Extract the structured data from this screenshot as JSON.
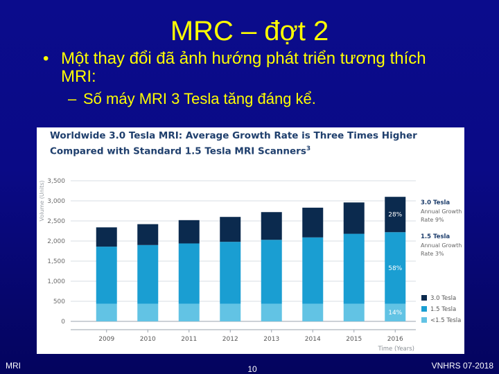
{
  "slide": {
    "title": "MRC – đợt 2",
    "bullet": "Một thay đổi đã ảnh hướng phát triển tương thích MRI:",
    "sub_bullet": "Số máy MRI 3 Tesla tăng đáng kể.",
    "footer_left": "MRI",
    "footer_center": "10",
    "footer_right": "VNHRS 07-2018"
  },
  "colors": {
    "background": "#0a0a86",
    "text": "#ffff00",
    "tesla_3_0": "#0b2a4e",
    "tesla_1_5": "#1a9ed2",
    "tesla_lt_1_5": "#62c3e4"
  },
  "chart_data": {
    "type": "bar",
    "stacked": true,
    "title": "Worldwide 3.0 Tesla MRI: Average Growth Rate is Three Times Higher Compared with Standard 1.5 Tesla MRI Scanners",
    "title_superscript": "3",
    "ylabel": "Volume (Units)",
    "xlabel": "Time (Years)",
    "ylim": [
      0,
      3500
    ],
    "yticks": [
      "0",
      "500",
      "1,000",
      "1,500",
      "2,000",
      "2,500",
      "3,000",
      "3,500"
    ],
    "ytick_values": [
      0,
      500,
      1000,
      1500,
      2000,
      2500,
      3000,
      3500
    ],
    "categories": [
      "2009",
      "2010",
      "2011",
      "2012",
      "2013",
      "2014",
      "2015",
      "2016"
    ],
    "series": [
      {
        "name": "<1.5 Tesla",
        "color": "#62c3e4",
        "values": [
          440,
          440,
          440,
          440,
          440,
          440,
          440,
          440
        ]
      },
      {
        "name": "1.5 Tesla",
        "color": "#1a9ed2",
        "values": [
          1420,
          1460,
          1500,
          1540,
          1590,
          1650,
          1740,
          1780
        ]
      },
      {
        "name": "3.0 Tesla",
        "color": "#0b2a4e",
        "values": [
          480,
          520,
          580,
          620,
          690,
          740,
          780,
          880
        ]
      }
    ],
    "data_labels": [
      {
        "series": "3.0 Tesla",
        "category": "2016",
        "text": "28%"
      },
      {
        "series": "1.5 Tesla",
        "category": "2016",
        "text": "58%"
      },
      {
        "series": "<1.5 Tesla",
        "category": "2016",
        "text": "14%"
      }
    ],
    "annotations": [
      {
        "series": "3.0 Tesla",
        "title": "3.0 Tesla",
        "lines": [
          "Annual Growth",
          "Rate 9%"
        ]
      },
      {
        "series": "1.5 Tesla",
        "title": "1.5 Tesla",
        "lines": [
          "Annual Growth",
          "Rate 3%"
        ]
      }
    ],
    "legend": {
      "position": "right",
      "items": [
        {
          "label": "3.0 Tesla",
          "color": "#0b2a4e"
        },
        {
          "label": "1.5 Tesla",
          "color": "#1a9ed2"
        },
        {
          "label": "<1.5 Tesla",
          "color": "#62c3e4"
        }
      ]
    },
    "grid": true
  }
}
